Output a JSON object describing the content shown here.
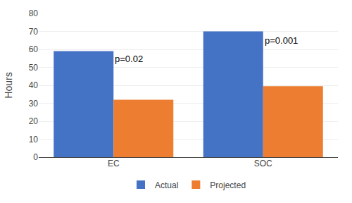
{
  "chart_data": {
    "type": "bar",
    "categories": [
      "EC",
      "SOC"
    ],
    "series": [
      {
        "name": "Actual",
        "color": "#4472C4",
        "values": [
          59,
          70
        ]
      },
      {
        "name": "Projected",
        "color": "#ED7D31",
        "values": [
          32,
          39.5
        ]
      }
    ],
    "ylabel": "Hours",
    "ylim": [
      0,
      80
    ],
    "yticks": [
      0,
      10,
      20,
      30,
      40,
      50,
      60,
      70,
      80
    ],
    "annotations": [
      {
        "text": "p=0.02",
        "x": "EC",
        "y": 51
      },
      {
        "text": "p=0.001",
        "x": "SOC",
        "y": 61
      }
    ],
    "grid": true,
    "legend": "bottom"
  }
}
